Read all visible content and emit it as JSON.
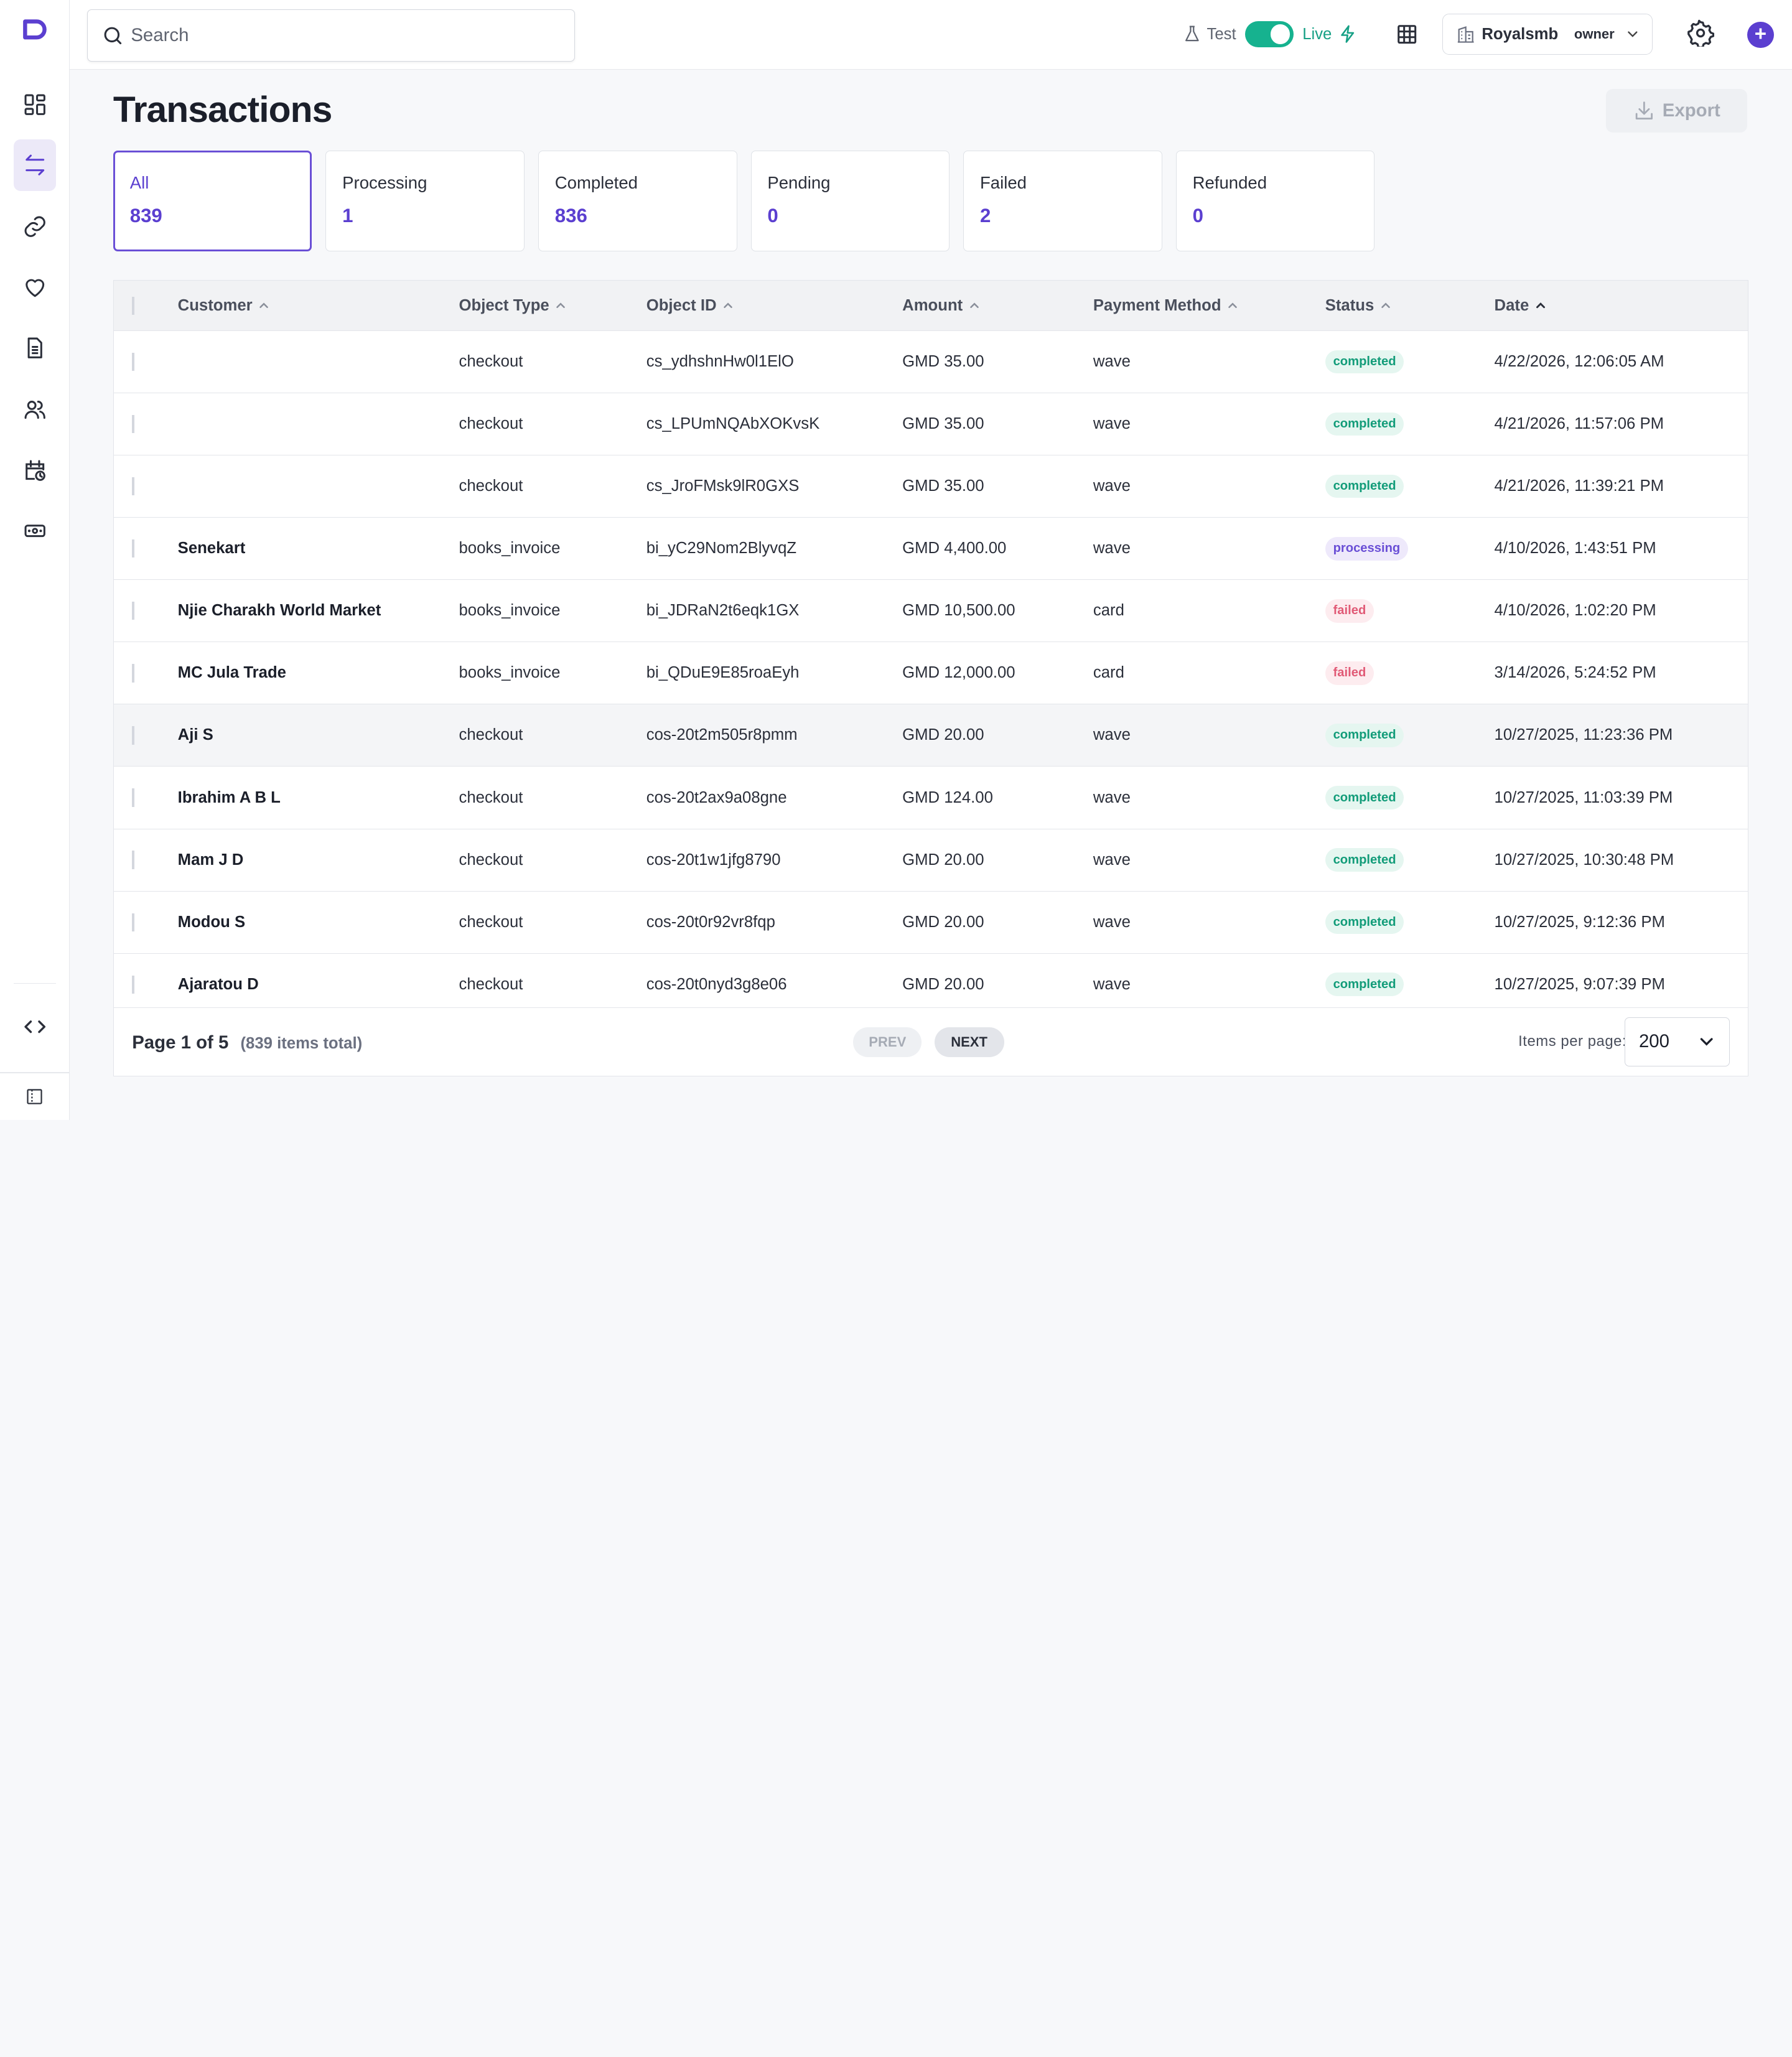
{
  "search": {
    "placeholder": "Search"
  },
  "mode": {
    "test_label": "Test",
    "live_label": "Live",
    "live_on": true
  },
  "org": {
    "name": "Royalsmb",
    "role": "owner"
  },
  "page": {
    "title": "Transactions",
    "export_label": "Export"
  },
  "filters": [
    {
      "label": "All",
      "count": "839",
      "active": true
    },
    {
      "label": "Processing",
      "count": "1"
    },
    {
      "label": "Completed",
      "count": "836"
    },
    {
      "label": "Pending",
      "count": "0"
    },
    {
      "label": "Failed",
      "count": "2"
    },
    {
      "label": "Refunded",
      "count": "0"
    }
  ],
  "table": {
    "columns": [
      "Customer",
      "Object Type",
      "Object ID",
      "Amount",
      "Payment Method",
      "Status",
      "Date"
    ],
    "rows": [
      {
        "customer": "",
        "type": "checkout",
        "id": "cs_ydhshnHw0l1ElO",
        "amount": "GMD 35.00",
        "method": "wave",
        "status": "completed",
        "date": "4/22/2026, 12:06:05 AM"
      },
      {
        "customer": "",
        "type": "checkout",
        "id": "cs_LPUmNQAbXOKvsK",
        "amount": "GMD 35.00",
        "method": "wave",
        "status": "completed",
        "date": "4/21/2026, 11:57:06 PM"
      },
      {
        "customer": "",
        "type": "checkout",
        "id": "cs_JroFMsk9lR0GXS",
        "amount": "GMD 35.00",
        "method": "wave",
        "status": "completed",
        "date": "4/21/2026, 11:39:21 PM"
      },
      {
        "customer": "Senekart",
        "type": "books_invoice",
        "id": "bi_yC29Nom2BlyvqZ",
        "amount": "GMD 4,400.00",
        "method": "wave",
        "status": "processing",
        "date": "4/10/2026, 1:43:51 PM"
      },
      {
        "customer": "Njie Charakh World Market",
        "type": "books_invoice",
        "id": "bi_JDRaN2t6eqk1GX",
        "amount": "GMD 10,500.00",
        "method": "card",
        "status": "failed",
        "date": "4/10/2026, 1:02:20 PM"
      },
      {
        "customer": "MC Jula Trade",
        "type": "books_invoice",
        "id": "bi_QDuE9E85roaEyh",
        "amount": "GMD 12,000.00",
        "method": "card",
        "status": "failed",
        "date": "3/14/2026, 5:24:52 PM"
      },
      {
        "customer": "Aji S",
        "type": "checkout",
        "id": "cos-20t2m505r8pmm",
        "amount": "GMD 20.00",
        "method": "wave",
        "status": "completed",
        "date": "10/27/2025, 11:23:36 PM"
      },
      {
        "customer": "Ibrahim A B L",
        "type": "checkout",
        "id": "cos-20t2ax9a08gne",
        "amount": "GMD 124.00",
        "method": "wave",
        "status": "completed",
        "date": "10/27/2025, 11:03:39 PM"
      },
      {
        "customer": "Mam J D",
        "type": "checkout",
        "id": "cos-20t1w1jfg8790",
        "amount": "GMD 20.00",
        "method": "wave",
        "status": "completed",
        "date": "10/27/2025, 10:30:48 PM"
      },
      {
        "customer": "Modou S",
        "type": "checkout",
        "id": "cos-20t0r92vr8fqp",
        "amount": "GMD 20.00",
        "method": "wave",
        "status": "completed",
        "date": "10/27/2025, 9:12:36 PM"
      },
      {
        "customer": "Ajaratou D",
        "type": "checkout",
        "id": "cos-20t0nyd3g8e06",
        "amount": "GMD 20.00",
        "method": "wave",
        "status": "completed",
        "date": "10/27/2025, 9:07:39 PM"
      }
    ]
  },
  "pagination": {
    "page_text": "Page 1 of 5",
    "total_text": "(839 items total)",
    "prev_label": "PREV",
    "next_label": "NEXT",
    "items_per_page_label": "Items per page:",
    "items_per_page": "200"
  },
  "sidebar": {
    "items": [
      "dashboard-icon",
      "transactions-icon",
      "link-icon",
      "heart-icon",
      "document-icon",
      "users-icon",
      "calendar-clock-icon",
      "cash-icon"
    ],
    "bottom": [
      "code-icon",
      "collapse-sidebar-icon"
    ]
  },
  "colors": {
    "accent": "#5b3fd0",
    "live": "#16b28f"
  }
}
